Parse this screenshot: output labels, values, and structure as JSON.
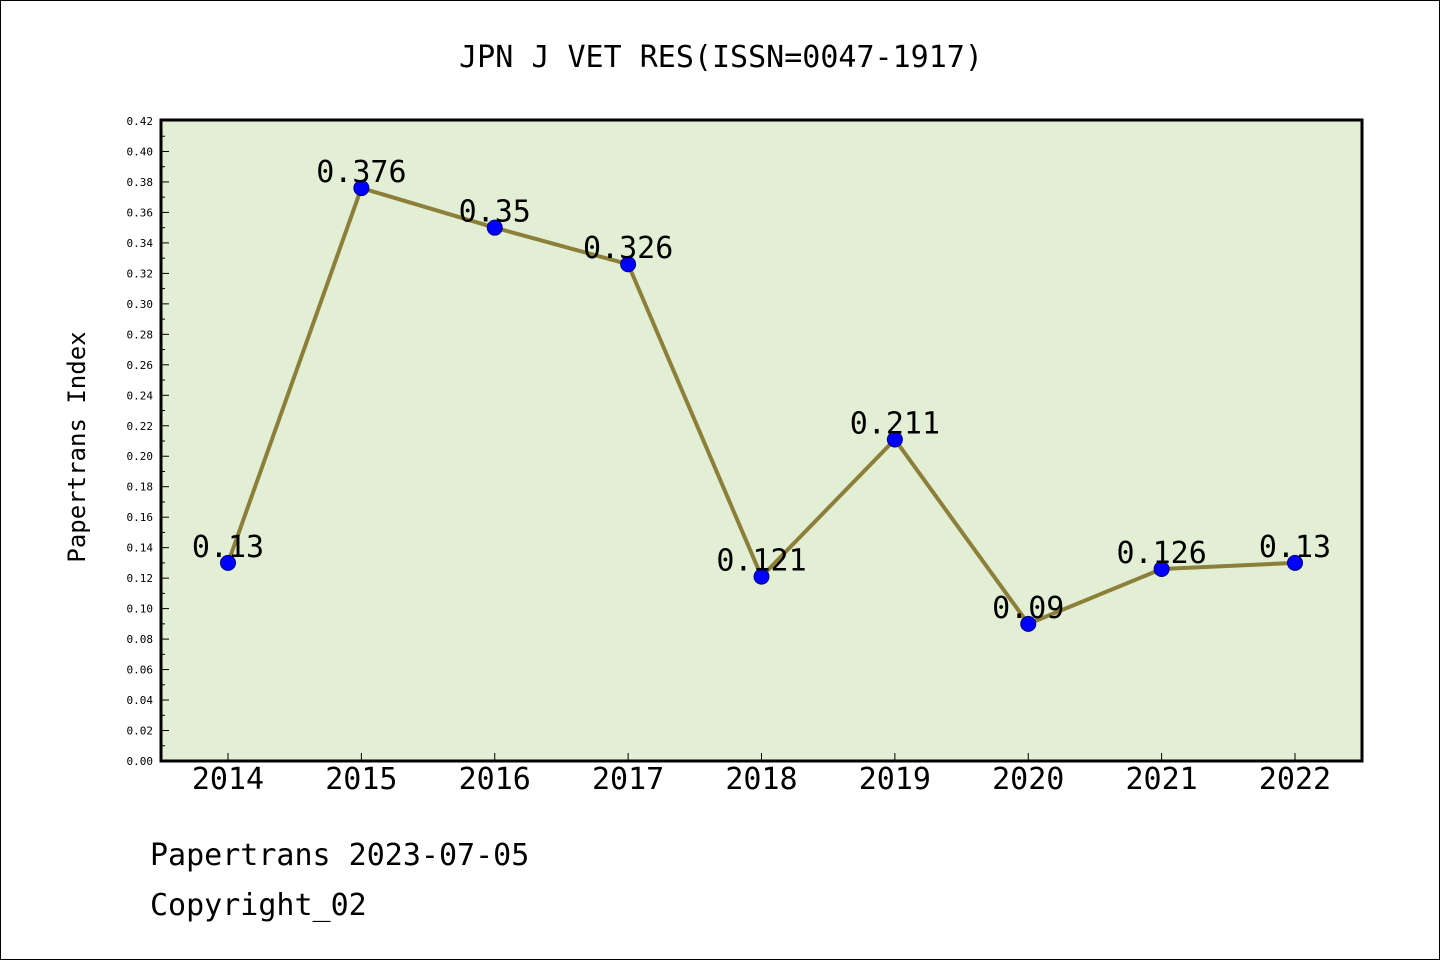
{
  "chart_data": {
    "type": "line",
    "title": "JPN J VET RES(ISSN=0047-1917)",
    "ylabel": "Papertrans Index",
    "xlabel": "",
    "categories": [
      "2014",
      "2015",
      "2016",
      "2017",
      "2018",
      "2019",
      "2020",
      "2021",
      "2022"
    ],
    "series": [
      {
        "values": [
          0.13,
          0.376,
          0.35,
          0.326,
          0.121,
          0.211,
          0.09,
          0.126,
          0.13
        ],
        "data_labels": [
          "0.13",
          "0.376",
          "0.35",
          "0.326",
          "0.121",
          "0.211",
          "0.09",
          "0.126",
          "0.13"
        ]
      }
    ],
    "ylim": [
      0,
      0.42
    ],
    "yticks": [
      "0.00",
      "0.02",
      "0.04",
      "0.06",
      "0.08",
      "0.10",
      "0.12",
      "0.14",
      "0.16",
      "0.18",
      "0.20",
      "0.22",
      "0.24",
      "0.26",
      "0.28",
      "0.30",
      "0.32",
      "0.34",
      "0.36",
      "0.38",
      "0.40",
      "0.42"
    ],
    "grid": false,
    "legend": "none",
    "colors": {
      "plot_background": "#e2efd5",
      "line": "#8c7f3a",
      "marker": "#0000ff"
    }
  },
  "footer": {
    "line1": "Papertrans 2023-07-05",
    "line2": "Copyright_02"
  }
}
